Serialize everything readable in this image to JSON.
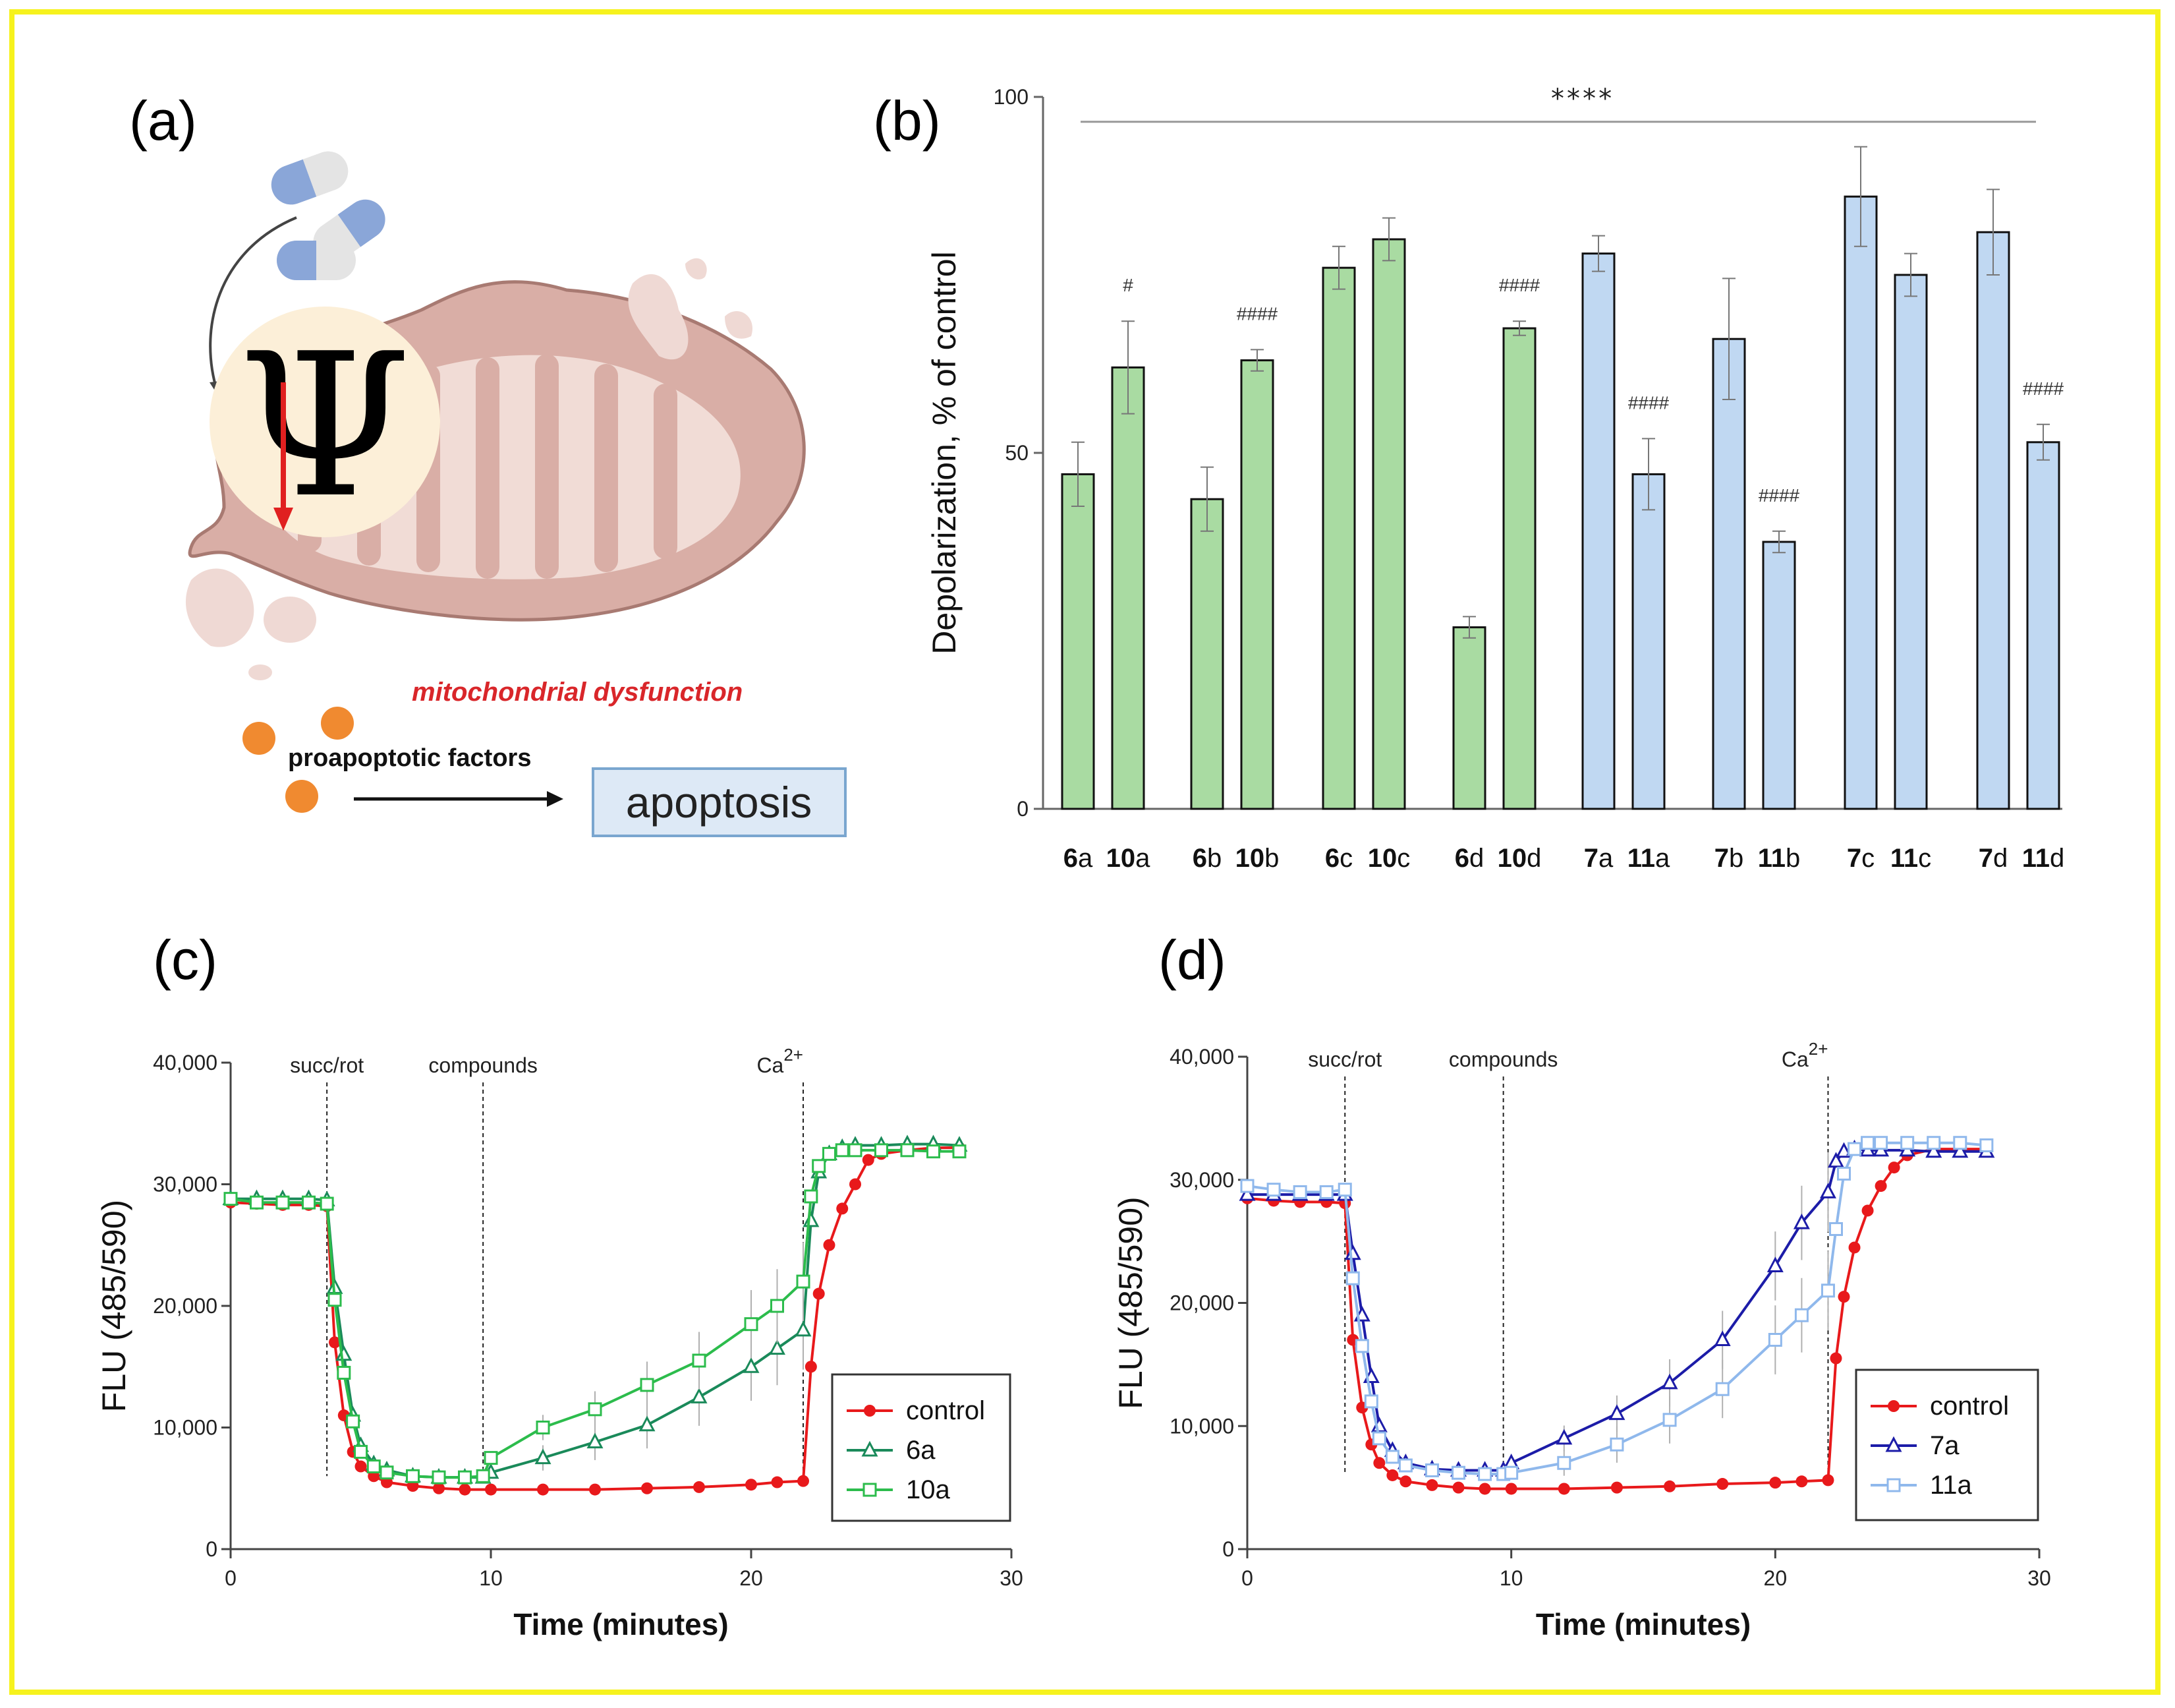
{
  "panels": {
    "a": {
      "letter": "(a)",
      "psi_symbol": "Ψ",
      "dysfunction_label": "mitochondrial dysfunction",
      "factors_label": "proapoptotic factors",
      "apoptosis_label": "apoptosis",
      "colors": {
        "mito": "#d9aea6",
        "mito_inner": "#f1dcd6",
        "arrow": "#e02020",
        "circle": "#fcefd8"
      }
    },
    "b": {
      "letter": "(b)"
    },
    "c": {
      "letter": "(c)"
    },
    "d": {
      "letter": "(d)"
    }
  },
  "chart_data": [
    {
      "id": "b",
      "type": "bar",
      "ylabel": "Depolarization, % of control",
      "ylim": [
        0,
        100
      ],
      "yticks": [
        0,
        50,
        100
      ],
      "overall_significance": "****",
      "categories": [
        {
          "num": "6",
          "suffix": "a",
          "bold_num": true
        },
        {
          "num": "10",
          "suffix": "a",
          "bold_num": true
        },
        {
          "num": "6",
          "suffix": "b",
          "bold_num": true
        },
        {
          "num": "10",
          "suffix": "b",
          "bold_num": true
        },
        {
          "num": "6",
          "suffix": "c",
          "bold_num": true
        },
        {
          "num": "10",
          "suffix": "c",
          "bold_num": true
        },
        {
          "num": "6",
          "suffix": "d",
          "bold_num": true
        },
        {
          "num": "10",
          "suffix": "d",
          "bold_num": true
        },
        {
          "num": "7",
          "suffix": "a",
          "bold_num": true
        },
        {
          "num": "11",
          "suffix": "a",
          "bold_num": true
        },
        {
          "num": "7",
          "suffix": "b",
          "bold_num": true
        },
        {
          "num": "11",
          "suffix": "b",
          "bold_num": true
        },
        {
          "num": "7",
          "suffix": "c",
          "bold_num": true
        },
        {
          "num": "11",
          "suffix": "c",
          "bold_num": true
        },
        {
          "num": "7",
          "suffix": "d",
          "bold_num": true
        },
        {
          "num": "11",
          "suffix": "d",
          "bold_num": true
        }
      ],
      "values": [
        47,
        62,
        43.5,
        63,
        76,
        80,
        25.5,
        67.5,
        78,
        47,
        66,
        37.5,
        86,
        75,
        81,
        51.5
      ],
      "errors": [
        4.5,
        6.5,
        4.5,
        1.5,
        3,
        3,
        1.5,
        1,
        2.5,
        5,
        8.5,
        1.5,
        7,
        3,
        6,
        2.5
      ],
      "significance": [
        "",
        "#",
        "",
        "####",
        "",
        "",
        "",
        "####",
        "",
        "####",
        "",
        "####",
        "",
        "",
        "",
        "####"
      ],
      "group_colors": {
        "green": "#a9dba2",
        "blue": "#c0d8f2"
      }
    },
    {
      "id": "c",
      "type": "line",
      "xlabel": "Time (minutes)",
      "ylabel": "FLU (485/590)",
      "xlim": [
        0,
        30
      ],
      "ylim": [
        0,
        40000
      ],
      "xticks": [
        0,
        10,
        20,
        30
      ],
      "yticks": [
        0,
        10000,
        20000,
        30000,
        40000
      ],
      "ytick_labels": [
        "0",
        "10,000",
        "20,000",
        "30,000",
        "40,000"
      ],
      "events": [
        {
          "x": 3.7,
          "label": "succ/rot"
        },
        {
          "x": 9.7,
          "label": "compounds"
        },
        {
          "x": 22.0,
          "label": "Ca",
          "sup": "2+"
        }
      ],
      "series": [
        {
          "name": "control",
          "color": "#e8191b",
          "marker": "circle",
          "x": [
            0,
            1,
            2,
            3,
            3.7,
            4,
            4.35,
            4.7,
            5,
            5.5,
            6,
            7,
            8,
            9,
            10,
            12,
            14,
            16,
            18,
            20,
            21,
            22,
            22.3,
            22.6,
            23,
            23.5,
            24,
            24.5,
            25,
            26,
            27,
            28
          ],
          "y": [
            28500,
            28400,
            28300,
            28300,
            28200,
            17000,
            11000,
            8000,
            6800,
            6000,
            5500,
            5200,
            5000,
            4900,
            4900,
            4900,
            4900,
            5000,
            5100,
            5300,
            5500,
            5600,
            15000,
            21000,
            25000,
            28000,
            30000,
            32000,
            32500,
            32800,
            33000,
            33000
          ]
        },
        {
          "name": "6a",
          "color": "#1a8a5a",
          "marker": "triangle-open",
          "x": [
            0,
            1,
            2,
            3,
            3.7,
            4,
            4.35,
            4.7,
            5,
            5.5,
            6,
            7,
            8,
            9,
            9.7,
            10,
            12,
            14,
            16,
            18,
            20,
            21,
            22,
            22.3,
            22.6,
            23,
            23.5,
            24,
            25,
            26,
            27,
            28
          ],
          "y": [
            28800,
            28800,
            28800,
            28800,
            28700,
            21500,
            16000,
            11000,
            8500,
            7000,
            6500,
            6000,
            5900,
            5900,
            5900,
            6300,
            7500,
            8800,
            10200,
            12500,
            15000,
            16500,
            18000,
            27000,
            31000,
            32500,
            33000,
            33200,
            33200,
            33300,
            33300,
            33200
          ]
        },
        {
          "name": "10a",
          "color": "#2cbc4c",
          "marker": "square-open",
          "x": [
            0,
            1,
            2,
            3,
            3.7,
            4,
            4.35,
            4.7,
            5,
            5.5,
            6,
            7,
            8,
            9,
            9.7,
            10,
            12,
            14,
            16,
            18,
            20,
            21,
            22,
            22.3,
            22.6,
            23,
            23.5,
            24,
            25,
            26,
            27,
            28
          ],
          "y": [
            28800,
            28500,
            28500,
            28500,
            28400,
            20500,
            14500,
            10500,
            8000,
            6800,
            6300,
            6000,
            5900,
            5900,
            6000,
            7500,
            10000,
            11500,
            13500,
            15500,
            18500,
            20000,
            22000,
            29000,
            31500,
            32500,
            32800,
            32800,
            32800,
            32800,
            32700,
            32700
          ]
        }
      ],
      "legend": [
        "control",
        "6a",
        "10a"
      ]
    },
    {
      "id": "d",
      "type": "line",
      "xlabel": "Time (minutes)",
      "ylabel": "FLU (485/590)",
      "xlim": [
        0,
        30
      ],
      "ylim": [
        0,
        40000
      ],
      "xticks": [
        0,
        10,
        20,
        30
      ],
      "yticks": [
        0,
        10000,
        20000,
        30000,
        40000
      ],
      "ytick_labels": [
        "0",
        "10,000",
        "20,000",
        "30,000",
        "40,000"
      ],
      "events": [
        {
          "x": 3.7,
          "label": "succ/rot"
        },
        {
          "x": 9.7,
          "label": "compounds"
        },
        {
          "x": 22.0,
          "label": "Ca",
          "sup": "2+"
        }
      ],
      "series": [
        {
          "name": "control",
          "color": "#e8191b",
          "marker": "circle",
          "x": [
            0,
            1,
            2,
            3,
            3.7,
            4,
            4.35,
            4.7,
            5,
            5.5,
            6,
            7,
            8,
            9,
            10,
            12,
            14,
            16,
            18,
            20,
            21,
            22,
            22.3,
            22.6,
            23,
            23.5,
            24,
            24.5,
            25,
            26,
            27,
            28
          ],
          "y": [
            28500,
            28300,
            28200,
            28200,
            28100,
            17000,
            11500,
            8500,
            7000,
            6000,
            5500,
            5200,
            5000,
            4900,
            4900,
            4900,
            5000,
            5100,
            5300,
            5400,
            5500,
            5600,
            15500,
            20500,
            24500,
            27500,
            29500,
            31000,
            32000,
            32500,
            32500,
            32500
          ]
        },
        {
          "name": "7a",
          "color": "#1c1ca8",
          "marker": "triangle-open",
          "x": [
            0,
            1,
            2,
            3,
            3.7,
            4,
            4.35,
            4.7,
            5,
            5.5,
            6,
            7,
            8,
            9,
            9.7,
            10,
            12,
            14,
            16,
            18,
            20,
            21,
            22,
            22.3,
            22.6,
            23,
            23.5,
            24,
            25,
            26,
            27,
            28
          ],
          "y": [
            28800,
            28800,
            28800,
            28800,
            28800,
            24000,
            19000,
            14000,
            10000,
            8000,
            7000,
            6500,
            6400,
            6400,
            6400,
            7000,
            9000,
            11000,
            13500,
            17000,
            23000,
            26500,
            29000,
            31500,
            32300,
            32500,
            32400,
            32400,
            32400,
            32300,
            32300,
            32300
          ]
        },
        {
          "name": "11a",
          "color": "#8fb8ec",
          "marker": "square-open",
          "x": [
            0,
            1,
            2,
            3,
            3.7,
            4,
            4.35,
            4.7,
            5,
            5.5,
            6,
            7,
            8,
            9,
            9.7,
            10,
            12,
            14,
            16,
            18,
            20,
            21,
            22,
            22.3,
            22.6,
            23,
            23.5,
            24,
            25,
            26,
            27,
            28
          ],
          "y": [
            29500,
            29200,
            29000,
            29000,
            29200,
            22000,
            16500,
            12000,
            9000,
            7500,
            6800,
            6400,
            6200,
            6100,
            6100,
            6200,
            7000,
            8500,
            10500,
            13000,
            17000,
            19000,
            21000,
            26000,
            30500,
            32500,
            33000,
            33000,
            33000,
            33000,
            33000,
            32800
          ]
        }
      ],
      "legend": [
        "control",
        "7a",
        "11a"
      ]
    }
  ]
}
